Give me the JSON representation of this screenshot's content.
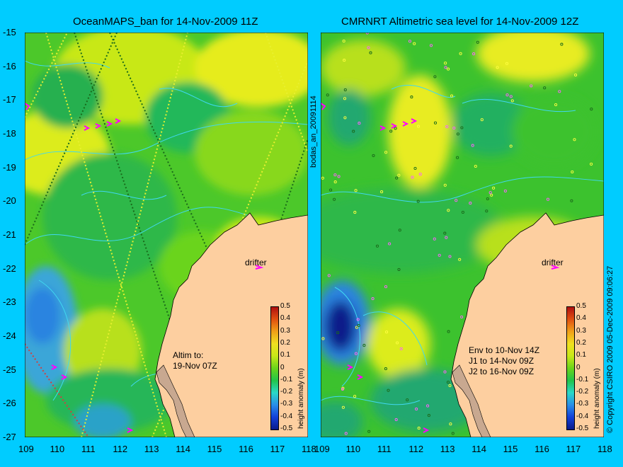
{
  "left_panel": {
    "title": "OceanMAPS_ban for 14-Nov-2009 11Z",
    "drifter_label": "drifter",
    "note": [
      "Altim to:",
      "19-Nov 07Z"
    ]
  },
  "right_panel": {
    "title": "CMRNRT Altimetric sea level  for 14-Nov-2009 12Z",
    "drifter_label": "drifter",
    "note": [
      "Env to 10-Nov 14Z",
      "J1 to 14-Nov 09Z",
      "J2 to 16-Nov 09Z"
    ]
  },
  "side_label": "bodas_an_20091114",
  "copyright": "© Copyright CSIRO 2009   05-Dec-2009 09:06:27",
  "colorbar": {
    "label": "height anomaly (m)",
    "ticks": [
      "0.5",
      "0.4",
      "0.3",
      "0.2",
      "0.1",
      "0",
      "-0.1",
      "-0.2",
      "-0.3",
      "-0.4",
      "-0.5"
    ],
    "colors": [
      "#0a1a8a",
      "#1440d8",
      "#2a8ee8",
      "#2ad8c8",
      "#22c44a",
      "#6ad41a",
      "#c8e818",
      "#f0e020",
      "#f0a018",
      "#e05010",
      "#b01010"
    ]
  },
  "axes": {
    "lat_ticks": [
      "-15",
      "-16",
      "-17",
      "-18",
      "-19",
      "-20",
      "-21",
      "-22",
      "-23",
      "-24",
      "-25",
      "-26",
      "-27"
    ],
    "lon_ticks": [
      "109",
      "110",
      "111",
      "112",
      "113",
      "114",
      "115",
      "116",
      "117",
      "118"
    ],
    "lon_range": [
      109,
      118
    ],
    "lat_range": [
      -27,
      -15
    ]
  },
  "colors": {
    "background": "#00ccff",
    "land": "#fdcfa0",
    "contour": "#40d8f0",
    "drifter": "#ff00ff",
    "track": "#ffff40"
  }
}
